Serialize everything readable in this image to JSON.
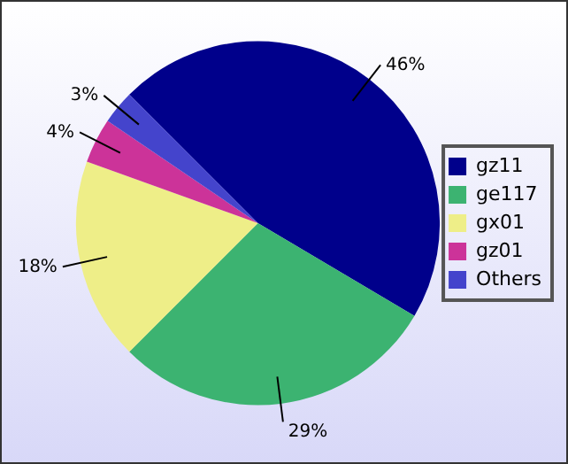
{
  "chart_data": {
    "type": "pie",
    "categories": [
      "gz11",
      "ge117",
      "gx01",
      "gz01",
      "Others"
    ],
    "values": [
      46,
      29,
      18,
      4,
      3
    ],
    "colors": [
      "#00008b",
      "#3cb371",
      "#eeee88",
      "#cc3399",
      "#4444cc"
    ],
    "value_labels": [
      "46%",
      "29%",
      "18%",
      "4%",
      "3%"
    ],
    "legend": "right"
  }
}
